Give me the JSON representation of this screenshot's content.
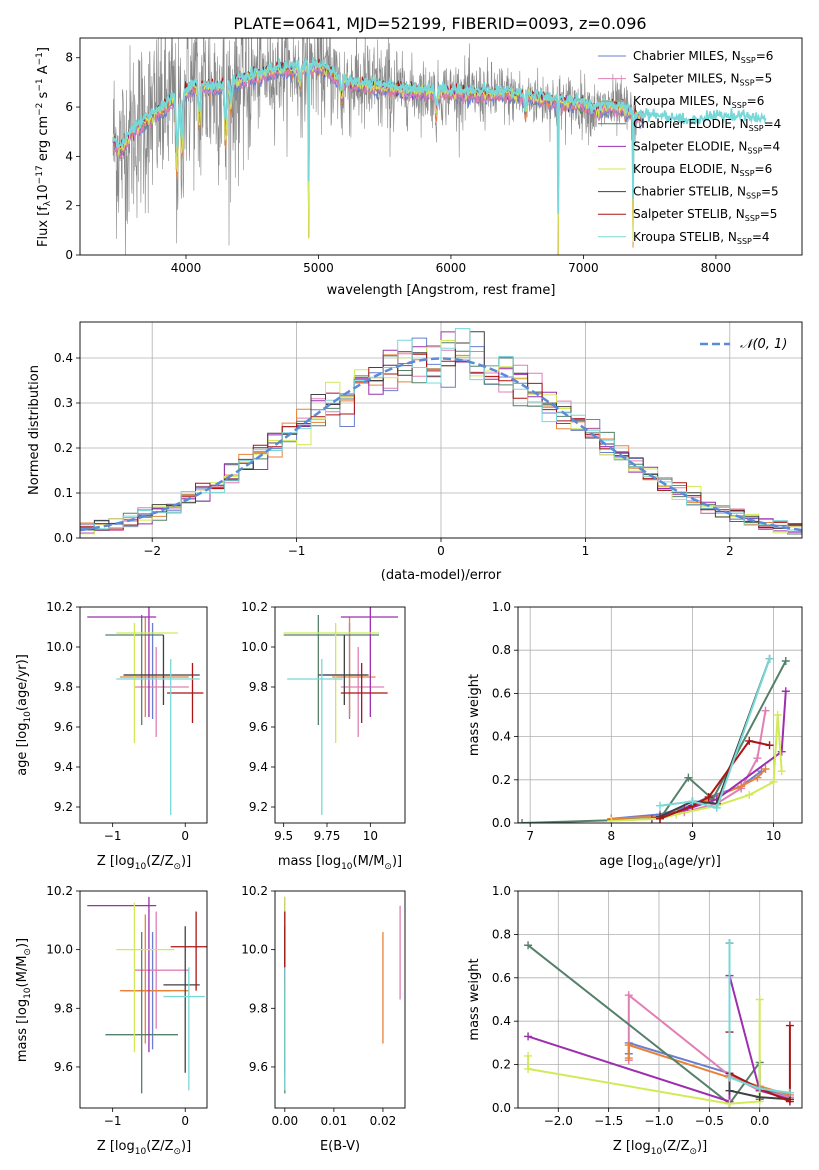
{
  "title": "PLATE=0641, MJD=52199, FIBERID=0093, z=0.096",
  "models": [
    {
      "name": "Chabrier MILES",
      "nssp": "6",
      "color": "#6a7fd0"
    },
    {
      "name": "Salpeter MILES",
      "nssp": "5",
      "color": "#e07fb4"
    },
    {
      "name": "Kroupa MILES",
      "nssp": "6",
      "color": "#e8823a"
    },
    {
      "name": "Chabrier ELODIE",
      "nssp": "4",
      "color": "#55806a"
    },
    {
      "name": "Salpeter ELODIE",
      "nssp": "4",
      "color": "#9c2fae"
    },
    {
      "name": "Kroupa ELODIE",
      "nssp": "6",
      "color": "#d2ea58"
    },
    {
      "name": "Chabrier STELIB",
      "nssp": "5",
      "color": "#404040"
    },
    {
      "name": "Salpeter STELIB",
      "nssp": "5",
      "color": "#aa1515"
    },
    {
      "name": "Kroupa STELIB",
      "nssp": "4",
      "color": "#78d8d8"
    }
  ],
  "chart_data": [
    {
      "type": "line",
      "id": "spectrum",
      "xlabel": "wavelength [Angstrom, rest frame]",
      "xlim": [
        3200,
        8650
      ],
      "ylim": [
        0,
        8.8
      ],
      "xticks": [
        4000,
        5000,
        6000,
        7000,
        8000
      ],
      "yticks": [
        0,
        2,
        4,
        6,
        8
      ],
      "continuum_x": [
        3450,
        3500,
        3600,
        3700,
        3800,
        3900,
        4000,
        4100,
        4200,
        4300,
        4400,
        4500,
        4600,
        4700,
        4800,
        4900,
        5000,
        5200,
        5400,
        5600,
        5800,
        6000,
        6200,
        6400,
        6600,
        6800,
        7000,
        7100,
        7200,
        7300,
        7400,
        7600,
        7800,
        8000,
        8200,
        8400,
        8600
      ],
      "continuum_y": [
        4.6,
        4.2,
        5.0,
        5.4,
        5.8,
        6.2,
        6.6,
        6.9,
        6.7,
        6.9,
        7.0,
        7.2,
        7.3,
        7.5,
        7.5,
        7.6,
        7.6,
        7.0,
        6.8,
        6.7,
        6.6,
        6.6,
        6.5,
        6.5,
        6.4,
        6.2,
        6.1,
        5.8,
        6.0,
        5.9,
        5.6,
        5.5,
        5.3,
        5.5,
        5.5,
        5.3,
        5.3
      ],
      "absorption_dips": [
        {
          "x": 3933,
          "depth": 3.2
        },
        {
          "x": 3968,
          "depth": 2.5
        },
        {
          "x": 4101,
          "depth": 1.8
        },
        {
          "x": 4300,
          "depth": 2.5
        },
        {
          "x": 4340,
          "depth": 1.2
        },
        {
          "x": 4861,
          "depth": 0.8
        },
        {
          "x": 4925,
          "depth": 7.6
        },
        {
          "x": 5175,
          "depth": 1.0
        },
        {
          "x": 5890,
          "depth": 0.9
        },
        {
          "x": 6563,
          "depth": 0.8
        },
        {
          "x": 6810,
          "depth": 6.3
        },
        {
          "x": 7375,
          "depth": 5.6
        }
      ],
      "noise_amplitude_data": 1.3,
      "data_color": "#888888",
      "legend_position": "upper right"
    },
    {
      "type": "histogram",
      "id": "residuals",
      "xlabel": "(data-model)/error",
      "ylabel": "Normed distribution",
      "xlim": [
        -2.5,
        2.5
      ],
      "ylim": [
        0,
        0.48
      ],
      "xticks": [
        -2,
        -1,
        0,
        1,
        2
      ],
      "yticks": [
        0.0,
        0.1,
        0.2,
        0.3,
        0.4
      ],
      "bin_width": 0.1,
      "reference": {
        "name": "𝒩(0, 1)",
        "mean": 0,
        "sigma": 1,
        "color": "#5b8bd8"
      },
      "grid": true,
      "legend_position": "upper right"
    },
    {
      "type": "scatter",
      "id": "age-vs-Z",
      "xlabel": "Z [log10(Z/Z☉)]",
      "ylabel": "age  [log10(age/yr)]",
      "xlim": [
        -1.45,
        0.3
      ],
      "ylim": [
        9.12,
        10.2
      ],
      "xticks": [
        -1,
        0
      ],
      "yticks": [
        9.2,
        9.4,
        9.6,
        9.8,
        10.0,
        10.2
      ],
      "points": [
        {
          "model": 0,
          "x": -0.45,
          "y": 9.86,
          "xerr": [
            0.4,
            0.25
          ],
          "yerr": [
            0.22,
            0.26
          ]
        },
        {
          "model": 1,
          "x": -0.4,
          "y": 9.8,
          "xerr": [
            0.3,
            0.45
          ],
          "yerr": [
            0.25,
            0.2
          ]
        },
        {
          "model": 2,
          "x": -0.55,
          "y": 9.85,
          "xerr": [
            0.35,
            0.6
          ],
          "yerr": [
            0.2,
            0.3
          ]
        },
        {
          "model": 3,
          "x": -0.6,
          "y": 10.06,
          "xerr": [
            0.5,
            0.3
          ],
          "yerr": [
            0.45,
            0.1
          ]
        },
        {
          "model": 4,
          "x": -0.5,
          "y": 10.15,
          "xerr": [
            0.85,
            0.1
          ],
          "yerr": [
            0.5,
            0.05
          ]
        },
        {
          "model": 5,
          "x": -0.7,
          "y": 10.07,
          "xerr": [
            0.25,
            0.6
          ],
          "yerr": [
            0.55,
            0.05
          ]
        },
        {
          "model": 6,
          "x": -0.3,
          "y": 9.86,
          "xerr": [
            0.55,
            0.5
          ],
          "yerr": [
            0.15,
            0.2
          ]
        },
        {
          "model": 7,
          "x": 0.1,
          "y": 9.77,
          "xerr": [
            0.35,
            0.15
          ],
          "yerr": [
            0.15,
            0.15
          ]
        },
        {
          "model": 8,
          "x": -0.2,
          "y": 9.84,
          "xerr": [
            0.75,
            0.4
          ],
          "yerr": [
            0.68,
            0.1
          ]
        }
      ]
    },
    {
      "type": "scatter",
      "id": "age-vs-mass",
      "xlabel": "mass [log10(M/M☉)]",
      "xlim": [
        9.45,
        10.2
      ],
      "ylim": [
        9.12,
        10.2
      ],
      "xticks": [
        9.5,
        9.75,
        10.0
      ],
      "yticks": [
        9.2,
        9.4,
        9.6,
        9.8,
        10.0,
        10.2
      ],
      "points": [
        {
          "model": 0,
          "x": 9.88,
          "y": 9.86,
          "xerr": [
            0.15,
            0.1
          ],
          "yerr": [
            0.22,
            0.26
          ]
        },
        {
          "model": 1,
          "x": 9.93,
          "y": 9.8,
          "xerr": [
            0.1,
            0.15
          ],
          "yerr": [
            0.25,
            0.2
          ]
        },
        {
          "model": 2,
          "x": 9.88,
          "y": 9.85,
          "xerr": [
            0.1,
            0.15
          ],
          "yerr": [
            0.2,
            0.3
          ]
        },
        {
          "model": 3,
          "x": 9.7,
          "y": 10.06,
          "xerr": [
            0.2,
            0.35
          ],
          "yerr": [
            0.45,
            0.1
          ]
        },
        {
          "model": 4,
          "x": 10.0,
          "y": 10.15,
          "xerr": [
            0.17,
            0.16
          ],
          "yerr": [
            0.5,
            0.05
          ]
        },
        {
          "model": 5,
          "x": 9.8,
          "y": 10.07,
          "xerr": [
            0.3,
            0.25
          ],
          "yerr": [
            0.55,
            0.05
          ]
        },
        {
          "model": 6,
          "x": 9.85,
          "y": 9.86,
          "xerr": [
            0.15,
            0.14
          ],
          "yerr": [
            0.15,
            0.2
          ]
        },
        {
          "model": 7,
          "x": 9.95,
          "y": 9.77,
          "xerr": [
            0.12,
            0.15
          ],
          "yerr": [
            0.15,
            0.15
          ]
        },
        {
          "model": 8,
          "x": 9.72,
          "y": 9.84,
          "xerr": [
            0.2,
            0.12
          ],
          "yerr": [
            0.68,
            0.1
          ]
        }
      ]
    },
    {
      "type": "line",
      "id": "weight-vs-age",
      "xlabel": "age  [log10(age/yr)]",
      "ylabel": "mass weight",
      "xlim": [
        6.85,
        10.35
      ],
      "ylim": [
        0,
        1
      ],
      "xticks": [
        7,
        8,
        9,
        10
      ],
      "yticks": [
        0.0,
        0.2,
        0.4,
        0.6,
        0.8,
        1.0
      ],
      "grid": true,
      "series": [
        {
          "model": 0,
          "x": [
            8.0,
            8.6,
            8.9,
            9.2,
            9.6,
            9.85
          ],
          "y": [
            0.02,
            0.04,
            0.07,
            0.12,
            0.17,
            0.24
          ]
        },
        {
          "model": 1,
          "x": [
            8.5,
            8.9,
            9.3,
            9.6,
            9.8,
            9.9
          ],
          "y": [
            0.02,
            0.05,
            0.09,
            0.16,
            0.3,
            0.52
          ]
        },
        {
          "model": 2,
          "x": [
            8.0,
            8.6,
            8.9,
            9.2,
            9.6,
            9.8,
            9.9
          ],
          "y": [
            0.02,
            0.03,
            0.06,
            0.11,
            0.17,
            0.21,
            0.25
          ]
        },
        {
          "model": 3,
          "x": [
            6.9,
            8.6,
            8.95,
            9.25,
            10.15
          ],
          "y": [
            0.0,
            0.02,
            0.21,
            0.11,
            0.75
          ]
        },
        {
          "model": 4,
          "x": [
            8.5,
            8.9,
            9.3,
            10.1,
            10.15
          ],
          "y": [
            0.02,
            0.06,
            0.11,
            0.33,
            0.61
          ]
        },
        {
          "model": 5,
          "x": [
            8.0,
            8.6,
            8.8,
            9.3,
            9.7,
            10.0,
            10.05,
            10.1
          ],
          "y": [
            0.01,
            0.02,
            0.04,
            0.08,
            0.13,
            0.19,
            0.5,
            0.24
          ]
        },
        {
          "model": 6,
          "x": [
            8.6,
            9.0,
            9.3,
            9.95
          ],
          "y": [
            0.03,
            0.1,
            0.09,
            0.76
          ]
        },
        {
          "model": 7,
          "x": [
            8.6,
            9.0,
            9.2,
            9.7,
            9.95
          ],
          "y": [
            0.02,
            0.08,
            0.12,
            0.38,
            0.36
          ]
        },
        {
          "model": 8,
          "x": [
            8.6,
            9.0,
            9.3,
            9.95
          ],
          "y": [
            0.08,
            0.1,
            0.07,
            0.76
          ]
        }
      ]
    },
    {
      "type": "scatter",
      "id": "mass-vs-Z",
      "xlabel": "Z [log10(Z/Z☉)]",
      "ylabel": "mass [log10(M/M☉)]",
      "xlim": [
        -1.45,
        0.3
      ],
      "ylim": [
        9.46,
        10.2
      ],
      "xticks": [
        -1,
        0
      ],
      "yticks": [
        9.6,
        9.8,
        10.0,
        10.2
      ],
      "points": [
        {
          "model": 0,
          "x": -0.45,
          "y": 9.86,
          "xerr": [
            0.4,
            0.25
          ],
          "yerr": [
            0.2,
            0.2
          ]
        },
        {
          "model": 1,
          "x": -0.4,
          "y": 9.93,
          "xerr": [
            0.3,
            0.45
          ],
          "yerr": [
            0.2,
            0.2
          ]
        },
        {
          "model": 2,
          "x": -0.55,
          "y": 9.86,
          "xerr": [
            0.35,
            0.6
          ],
          "yerr": [
            0.18,
            0.26
          ]
        },
        {
          "model": 3,
          "x": -0.6,
          "y": 9.71,
          "xerr": [
            0.5,
            0.5
          ],
          "yerr": [
            0.2,
            0.35
          ]
        },
        {
          "model": 4,
          "x": -0.5,
          "y": 10.15,
          "xerr": [
            0.85,
            0.1
          ],
          "yerr": [
            0.5,
            0.03
          ]
        },
        {
          "model": 5,
          "x": -0.7,
          "y": 10.0,
          "xerr": [
            0.25,
            0.55
          ],
          "yerr": [
            0.35,
            0.16
          ]
        },
        {
          "model": 6,
          "x": 0.0,
          "y": 9.88,
          "xerr": [
            0.3,
            0.2
          ],
          "yerr": [
            0.3,
            0.2
          ]
        },
        {
          "model": 7,
          "x": 0.15,
          "y": 10.01,
          "xerr": [
            0.35,
            0.15
          ],
          "yerr": [
            0.15,
            0.12
          ]
        },
        {
          "model": 8,
          "x": 0.05,
          "y": 9.84,
          "xerr": [
            0.35,
            0.22
          ],
          "yerr": [
            0.32,
            0.1
          ]
        }
      ]
    },
    {
      "type": "scatter",
      "id": "mass-vs-ebv",
      "xlabel": "E(B-V)",
      "xlim": [
        -0.002,
        0.0245
      ],
      "ylim": [
        9.46,
        10.2
      ],
      "xticks": [
        0.0,
        0.01,
        0.02
      ],
      "yticks": [
        9.6,
        9.8,
        10.0,
        10.2
      ],
      "points": [
        {
          "model": 0,
          "x": 0.0,
          "y": 9.86,
          "yerr": [
            0.3,
            0.26
          ]
        },
        {
          "model": 1,
          "x": 0.0235,
          "y": 9.98,
          "yerr": [
            0.15,
            0.17
          ]
        },
        {
          "model": 2,
          "x": 0.02,
          "y": 9.86,
          "yerr": [
            0.18,
            0.2
          ]
        },
        {
          "model": 3,
          "x": 0.0,
          "y": 9.71,
          "yerr": [
            0.2,
            0.45
          ]
        },
        {
          "model": 4,
          "x": 0.0,
          "y": 10.15,
          "yerr": [
            0.5,
            0.03
          ]
        },
        {
          "model": 5,
          "x": 0.0,
          "y": 10.0,
          "yerr": [
            0.35,
            0.18
          ]
        },
        {
          "model": 6,
          "x": 0.0,
          "y": 9.88,
          "yerr": [
            0.3,
            0.2
          ]
        },
        {
          "model": 7,
          "x": 0.0,
          "y": 10.01,
          "yerr": [
            0.15,
            0.12
          ]
        },
        {
          "model": 8,
          "x": 0.0,
          "y": 9.84,
          "yerr": [
            0.32,
            0.1
          ]
        }
      ]
    },
    {
      "type": "line",
      "id": "weight-vs-Z",
      "xlabel": "Z [log10(Z/Z☉)]",
      "ylabel": "mass weight",
      "xlim": [
        -2.4,
        0.42
      ],
      "ylim": [
        0,
        1
      ],
      "xticks": [
        -2.0,
        -1.5,
        -1.0,
        -0.5,
        0.0
      ],
      "yticks": [
        0.0,
        0.2,
        0.4,
        0.6,
        0.8,
        1.0
      ],
      "grid": true,
      "series": [
        {
          "model": 0,
          "x": [
            -1.3,
            -1.3,
            -0.3,
            0.0,
            0.3
          ],
          "y": [
            0.25,
            0.3,
            0.16,
            0.09,
            0.05
          ]
        },
        {
          "model": 1,
          "x": [
            -1.3,
            -1.3,
            -0.3,
            0.0,
            0.3
          ],
          "y": [
            0.22,
            0.52,
            0.15,
            0.08,
            0.05
          ]
        },
        {
          "model": 2,
          "x": [
            -1.3,
            -1.3,
            -0.3,
            0.0,
            0.3
          ],
          "y": [
            0.23,
            0.29,
            0.14,
            0.1,
            0.06
          ]
        },
        {
          "model": 3,
          "x": [
            -2.3,
            -0.3,
            0.0,
            0.0
          ],
          "y": [
            0.75,
            0.02,
            0.21,
            0.04
          ]
        },
        {
          "model": 4,
          "x": [
            -2.3,
            -0.3,
            -0.3,
            0.0,
            0.3
          ],
          "y": [
            0.33,
            0.03,
            0.61,
            0.08,
            0.04
          ]
        },
        {
          "model": 5,
          "x": [
            -2.3,
            -2.3,
            -0.3,
            0.0,
            0.0,
            0.0
          ],
          "y": [
            0.24,
            0.18,
            0.02,
            0.03,
            0.5,
            0.05
          ]
        },
        {
          "model": 6,
          "x": [
            -0.3,
            -0.3,
            0.0,
            0.3
          ],
          "y": [
            0.76,
            0.08,
            0.05,
            0.04
          ]
        },
        {
          "model": 7,
          "x": [
            -0.3,
            -0.3,
            0.0,
            0.3,
            0.3
          ],
          "y": [
            0.35,
            0.16,
            0.09,
            0.03,
            0.38
          ]
        },
        {
          "model": 8,
          "x": [
            -0.3,
            -0.3,
            0.0,
            0.3
          ],
          "y": [
            0.76,
            0.14,
            0.09,
            0.07
          ]
        }
      ]
    }
  ]
}
